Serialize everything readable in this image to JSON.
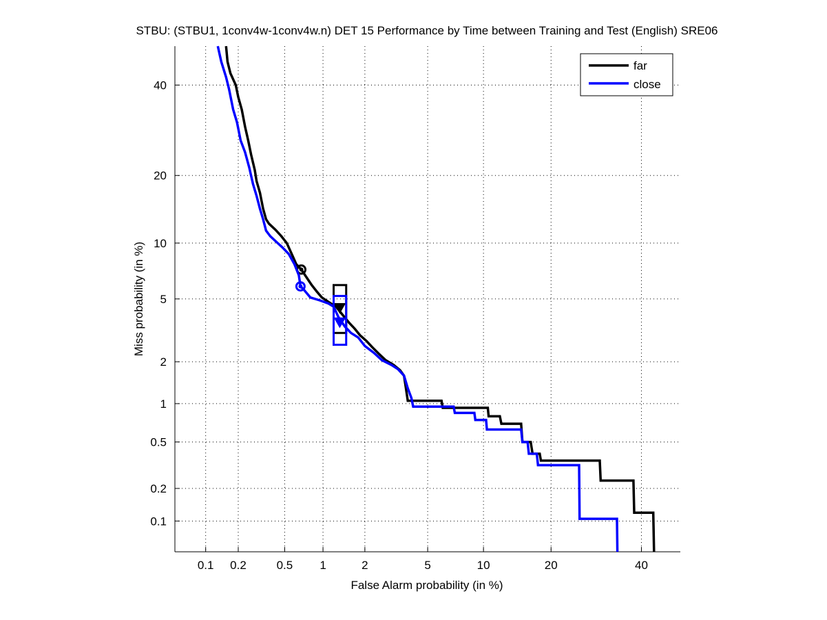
{
  "chart_data": {
    "type": "line",
    "title": "STBU: (STBU1, 1conv4w-1conv4w.n) DET 15 Performance by Time between Training and Test (English) SRE06",
    "xlabel": "False Alarm probability (in %)",
    "ylabel": "Miss probability (in %)",
    "scale": "probit",
    "xlim": [
      0.05,
      50
    ],
    "ylim": [
      0.05,
      50
    ],
    "grid": true,
    "xticks": [
      0.1,
      0.2,
      0.5,
      1,
      2,
      5,
      10,
      20,
      40
    ],
    "xtick_labels": [
      "0.1",
      "0.2",
      "0.5",
      "1",
      "2",
      "5",
      "10",
      "20",
      "40"
    ],
    "yticks": [
      0.1,
      0.2,
      0.5,
      1,
      2,
      5,
      10,
      20,
      40
    ],
    "ytick_labels": [
      "0.1",
      "0.2",
      "0.5",
      "1",
      "2",
      "5",
      "10",
      "20",
      "40"
    ],
    "legend": {
      "position": "top-right",
      "entries": [
        "far",
        "close"
      ]
    },
    "series": [
      {
        "name": "far",
        "color": "#000000",
        "points": [
          [
            0.155,
            50
          ],
          [
            0.16,
            46
          ],
          [
            0.17,
            43
          ],
          [
            0.19,
            40
          ],
          [
            0.2,
            37
          ],
          [
            0.215,
            34
          ],
          [
            0.23,
            30
          ],
          [
            0.245,
            27
          ],
          [
            0.26,
            24
          ],
          [
            0.28,
            21
          ],
          [
            0.29,
            19
          ],
          [
            0.31,
            17
          ],
          [
            0.33,
            14.5
          ],
          [
            0.35,
            13
          ],
          [
            0.37,
            12.4
          ],
          [
            0.42,
            11.6
          ],
          [
            0.47,
            10.8
          ],
          [
            0.52,
            10
          ],
          [
            0.58,
            8.6
          ],
          [
            0.62,
            7.8
          ],
          [
            0.68,
            7.3
          ],
          [
            0.75,
            6.6
          ],
          [
            0.82,
            6.0
          ],
          [
            0.9,
            5.5
          ],
          [
            0.98,
            5.1
          ],
          [
            1.1,
            4.8
          ],
          [
            1.25,
            4.5
          ],
          [
            1.4,
            4.0
          ],
          [
            1.55,
            3.6
          ],
          [
            1.7,
            3.3
          ],
          [
            1.85,
            3.0
          ],
          [
            2.05,
            2.75
          ],
          [
            2.25,
            2.5
          ],
          [
            2.5,
            2.25
          ],
          [
            2.75,
            2.05
          ],
          [
            3.1,
            1.9
          ],
          [
            3.4,
            1.75
          ],
          [
            3.6,
            1.6
          ],
          [
            3.7,
            1.3
          ],
          [
            3.8,
            1.05
          ],
          [
            6.0,
            1.05
          ],
          [
            6.1,
            0.93
          ],
          [
            10.5,
            0.93
          ],
          [
            10.6,
            0.8
          ],
          [
            12.0,
            0.8
          ],
          [
            12.2,
            0.7
          ],
          [
            15.0,
            0.7
          ],
          [
            15.2,
            0.5
          ],
          [
            16.5,
            0.5
          ],
          [
            16.8,
            0.4
          ],
          [
            18.0,
            0.4
          ],
          [
            18.2,
            0.35
          ],
          [
            30.0,
            0.35
          ],
          [
            30.2,
            0.235
          ],
          [
            38.0,
            0.235
          ],
          [
            38.2,
            0.12
          ],
          [
            43.0,
            0.12
          ],
          [
            43.2,
            0.05
          ]
        ],
        "min_dcf_point": [
          0.68,
          7.3
        ],
        "act_dcf_point": [
          1.33,
          4.4
        ],
        "ci_box": {
          "x": [
            1.2,
            1.48
          ],
          "y": [
            3.1,
            6.0
          ]
        }
      },
      {
        "name": "close",
        "color": "#0000ff",
        "points": [
          [
            0.13,
            50
          ],
          [
            0.14,
            46
          ],
          [
            0.155,
            42
          ],
          [
            0.165,
            39
          ],
          [
            0.18,
            34
          ],
          [
            0.195,
            31
          ],
          [
            0.21,
            27
          ],
          [
            0.23,
            24.5
          ],
          [
            0.25,
            21.5
          ],
          [
            0.27,
            18.5
          ],
          [
            0.29,
            16.5
          ],
          [
            0.31,
            14.5
          ],
          [
            0.33,
            13
          ],
          [
            0.35,
            11.5
          ],
          [
            0.38,
            10.8
          ],
          [
            0.43,
            10.1
          ],
          [
            0.48,
            9.5
          ],
          [
            0.54,
            8.8
          ],
          [
            0.6,
            7.8
          ],
          [
            0.65,
            6.8
          ],
          [
            0.67,
            5.9
          ],
          [
            0.72,
            5.6
          ],
          [
            0.8,
            5.1
          ],
          [
            0.95,
            4.9
          ],
          [
            1.1,
            4.7
          ],
          [
            1.2,
            4.5
          ],
          [
            1.3,
            3.9
          ],
          [
            1.45,
            3.4
          ],
          [
            1.6,
            3.1
          ],
          [
            1.8,
            2.9
          ],
          [
            2.0,
            2.55
          ],
          [
            2.3,
            2.3
          ],
          [
            2.6,
            2.05
          ],
          [
            3.0,
            1.9
          ],
          [
            3.3,
            1.78
          ],
          [
            3.6,
            1.6
          ],
          [
            3.8,
            1.3
          ],
          [
            4.0,
            1.1
          ],
          [
            4.1,
            0.95
          ],
          [
            7.0,
            0.95
          ],
          [
            7.1,
            0.85
          ],
          [
            9.0,
            0.85
          ],
          [
            9.1,
            0.75
          ],
          [
            10.3,
            0.75
          ],
          [
            10.4,
            0.63
          ],
          [
            15.0,
            0.63
          ],
          [
            15.2,
            0.5
          ],
          [
            16.0,
            0.5
          ],
          [
            16.2,
            0.4
          ],
          [
            17.5,
            0.4
          ],
          [
            17.7,
            0.32
          ],
          [
            25.5,
            0.32
          ],
          [
            25.6,
            0.105
          ],
          [
            34.0,
            0.105
          ],
          [
            34.1,
            0.05
          ]
        ],
        "min_dcf_point": [
          0.67,
          5.9
        ],
        "act_dcf_point": [
          1.33,
          3.6
        ],
        "ci_box": {
          "x": [
            1.2,
            1.48
          ],
          "y": [
            2.6,
            5.2
          ]
        }
      }
    ]
  }
}
